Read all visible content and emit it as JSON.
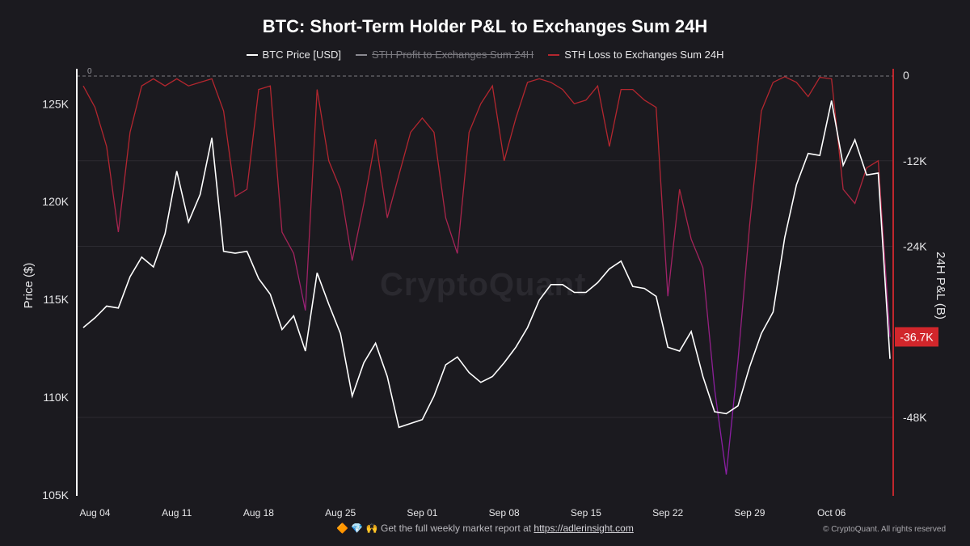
{
  "title": "BTC: Short-Term Holder P&L to Exchanges Sum 24H",
  "legend": [
    {
      "label": "BTC Price [USD]",
      "color": "#ffffff",
      "disabled": false
    },
    {
      "label": "STH Profit to Exchanges Sum 24H",
      "color": "#8a8990",
      "disabled": true
    },
    {
      "label": "STH Loss to Exchanges Sum 24H",
      "color": "#b3262e",
      "disabled": false
    }
  ],
  "watermark": "CryptoQuant",
  "footer": {
    "icons": "🔶 💎 🙌",
    "text": "Get the full weekly market report at ",
    "link": "https://adlerinsight.com",
    "copyright": "© CryptoQuant. All rights reserved"
  },
  "chart_data": {
    "type": "line",
    "title": "BTC: Short-Term Holder P&L to Exchanges Sum 24H",
    "x_range": [
      "2025-08-03",
      "2025-10-11"
    ],
    "x_ticks": [
      {
        "label": "Aug 04",
        "date": "2025-08-04"
      },
      {
        "label": "Aug 11",
        "date": "2025-08-11"
      },
      {
        "label": "Aug 18",
        "date": "2025-08-18"
      },
      {
        "label": "Aug 25",
        "date": "2025-08-25"
      },
      {
        "label": "Sep 01",
        "date": "2025-09-01"
      },
      {
        "label": "Sep 08",
        "date": "2025-09-08"
      },
      {
        "label": "Sep 15",
        "date": "2025-09-15"
      },
      {
        "label": "Sep 22",
        "date": "2025-09-22"
      },
      {
        "label": "Sep 29",
        "date": "2025-09-29"
      },
      {
        "label": "Oct 06",
        "date": "2025-10-06"
      }
    ],
    "y_left": {
      "label": "Price ($)",
      "range": [
        105000,
        126500
      ],
      "ticks": [
        105000,
        110000,
        115000,
        120000,
        125000
      ],
      "tick_labels": [
        "105K",
        "110K",
        "115K",
        "120K",
        "125K"
      ]
    },
    "y_right": {
      "label": "24H P&L (B)",
      "range": [
        -59000,
        0
      ],
      "ticks": [
        0,
        -12000,
        -24000,
        -48000
      ],
      "tick_labels": [
        "0",
        "-12K",
        "-24K",
        "-48K"
      ]
    },
    "zero_marker": "0",
    "last_value_label": "-36.7K",
    "last_value": -36700,
    "series": [
      {
        "name": "BTC Price [USD]",
        "axis": "left",
        "color": "#ffffff",
        "points": [
          [
            "2025-08-03",
            113600
          ],
          [
            "2025-08-04",
            114100
          ],
          [
            "2025-08-05",
            114700
          ],
          [
            "2025-08-06",
            114600
          ],
          [
            "2025-08-07",
            116200
          ],
          [
            "2025-08-08",
            117200
          ],
          [
            "2025-08-09",
            116700
          ],
          [
            "2025-08-10",
            118400
          ],
          [
            "2025-08-11",
            121600
          ],
          [
            "2025-08-12",
            119000
          ],
          [
            "2025-08-13",
            120400
          ],
          [
            "2025-08-14",
            123300
          ],
          [
            "2025-08-15",
            117500
          ],
          [
            "2025-08-16",
            117400
          ],
          [
            "2025-08-17",
            117500
          ],
          [
            "2025-08-18",
            116100
          ],
          [
            "2025-08-19",
            115300
          ],
          [
            "2025-08-20",
            113500
          ],
          [
            "2025-08-21",
            114200
          ],
          [
            "2025-08-22",
            112400
          ],
          [
            "2025-08-23",
            116400
          ],
          [
            "2025-08-24",
            114800
          ],
          [
            "2025-08-25",
            113300
          ],
          [
            "2025-08-26",
            110100
          ],
          [
            "2025-08-27",
            111800
          ],
          [
            "2025-08-28",
            112800
          ],
          [
            "2025-08-29",
            111100
          ],
          [
            "2025-08-30",
            108500
          ],
          [
            "2025-08-31",
            108700
          ],
          [
            "2025-09-01",
            108900
          ],
          [
            "2025-09-02",
            110100
          ],
          [
            "2025-09-03",
            111700
          ],
          [
            "2025-09-04",
            112100
          ],
          [
            "2025-09-05",
            111300
          ],
          [
            "2025-09-06",
            110800
          ],
          [
            "2025-09-07",
            111100
          ],
          [
            "2025-09-08",
            111800
          ],
          [
            "2025-09-09",
            112600
          ],
          [
            "2025-09-10",
            113600
          ],
          [
            "2025-09-11",
            115000
          ],
          [
            "2025-09-12",
            115800
          ],
          [
            "2025-09-13",
            115800
          ],
          [
            "2025-09-14",
            115400
          ],
          [
            "2025-09-15",
            115400
          ],
          [
            "2025-09-16",
            115900
          ],
          [
            "2025-09-17",
            116600
          ],
          [
            "2025-09-18",
            117000
          ],
          [
            "2025-09-19",
            115700
          ],
          [
            "2025-09-20",
            115600
          ],
          [
            "2025-09-21",
            115200
          ],
          [
            "2025-09-22",
            112600
          ],
          [
            "2025-09-23",
            112400
          ],
          [
            "2025-09-24",
            113400
          ],
          [
            "2025-09-25",
            111100
          ],
          [
            "2025-09-26",
            109300
          ],
          [
            "2025-09-27",
            109200
          ],
          [
            "2025-09-28",
            109600
          ],
          [
            "2025-09-29",
            111600
          ],
          [
            "2025-09-30",
            113300
          ],
          [
            "2025-10-01",
            114400
          ],
          [
            "2025-10-02",
            118200
          ],
          [
            "2025-10-03",
            120900
          ],
          [
            "2025-10-04",
            122500
          ],
          [
            "2025-10-05",
            122400
          ],
          [
            "2025-10-06",
            125200
          ],
          [
            "2025-10-07",
            121900
          ],
          [
            "2025-10-08",
            123200
          ],
          [
            "2025-10-09",
            121400
          ],
          [
            "2025-10-10",
            121500
          ],
          [
            "2025-10-11",
            112000
          ]
        ]
      },
      {
        "name": "STH Loss to Exchanges Sum 24H",
        "axis": "right",
        "color_high": "#b3262e",
        "color_low": "#8b1ea3",
        "points": [
          [
            "2025-08-03",
            -1500
          ],
          [
            "2025-08-04",
            -4500
          ],
          [
            "2025-08-05",
            -10000
          ],
          [
            "2025-08-06",
            -22000
          ],
          [
            "2025-08-07",
            -8000
          ],
          [
            "2025-08-08",
            -1500
          ],
          [
            "2025-08-09",
            -500
          ],
          [
            "2025-08-10",
            -1500
          ],
          [
            "2025-08-11",
            -500
          ],
          [
            "2025-08-12",
            -1500
          ],
          [
            "2025-08-13",
            -1000
          ],
          [
            "2025-08-14",
            -500
          ],
          [
            "2025-08-15",
            -5000
          ],
          [
            "2025-08-16",
            -17000
          ],
          [
            "2025-08-17",
            -16000
          ],
          [
            "2025-08-18",
            -2000
          ],
          [
            "2025-08-19",
            -1500
          ],
          [
            "2025-08-20",
            -22000
          ],
          [
            "2025-08-21",
            -25000
          ],
          [
            "2025-08-22",
            -33000
          ],
          [
            "2025-08-23",
            -2000
          ],
          [
            "2025-08-24",
            -12000
          ],
          [
            "2025-08-25",
            -16000
          ],
          [
            "2025-08-26",
            -26000
          ],
          [
            "2025-08-27",
            -18000
          ],
          [
            "2025-08-28",
            -9000
          ],
          [
            "2025-08-29",
            -20000
          ],
          [
            "2025-08-30",
            -14000
          ],
          [
            "2025-08-31",
            -8000
          ],
          [
            "2025-09-01",
            -6000
          ],
          [
            "2025-09-02",
            -8000
          ],
          [
            "2025-09-03",
            -20000
          ],
          [
            "2025-09-04",
            -25000
          ],
          [
            "2025-09-05",
            -8000
          ],
          [
            "2025-09-06",
            -4000
          ],
          [
            "2025-09-07",
            -1500
          ],
          [
            "2025-09-08",
            -12000
          ],
          [
            "2025-09-09",
            -6000
          ],
          [
            "2025-09-10",
            -1000
          ],
          [
            "2025-09-11",
            -500
          ],
          [
            "2025-09-12",
            -1000
          ],
          [
            "2025-09-13",
            -2000
          ],
          [
            "2025-09-14",
            -4000
          ],
          [
            "2025-09-15",
            -3500
          ],
          [
            "2025-09-16",
            -1500
          ],
          [
            "2025-09-17",
            -10000
          ],
          [
            "2025-09-18",
            -2000
          ],
          [
            "2025-09-19",
            -2000
          ],
          [
            "2025-09-20",
            -3500
          ],
          [
            "2025-09-21",
            -4500
          ],
          [
            "2025-09-22",
            -31000
          ],
          [
            "2025-09-23",
            -16000
          ],
          [
            "2025-09-24",
            -23000
          ],
          [
            "2025-09-25",
            -27000
          ],
          [
            "2025-09-26",
            -44000
          ],
          [
            "2025-09-27",
            -56000
          ],
          [
            "2025-09-28",
            -40000
          ],
          [
            "2025-09-29",
            -21000
          ],
          [
            "2025-09-30",
            -5000
          ],
          [
            "2025-10-01",
            -1000
          ],
          [
            "2025-10-02",
            -200
          ],
          [
            "2025-10-03",
            -1000
          ],
          [
            "2025-10-04",
            -3000
          ],
          [
            "2025-10-05",
            -300
          ],
          [
            "2025-10-06",
            -500
          ],
          [
            "2025-10-07",
            -16000
          ],
          [
            "2025-10-08",
            -18000
          ],
          [
            "2025-10-09",
            -13000
          ],
          [
            "2025-10-10",
            -12000
          ],
          [
            "2025-10-11",
            -36700
          ]
        ]
      }
    ]
  }
}
